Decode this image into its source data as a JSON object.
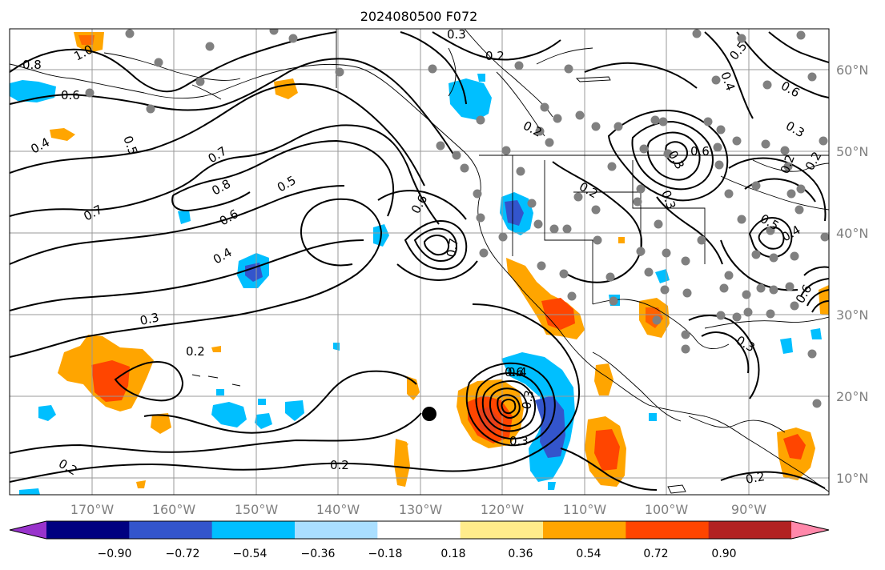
{
  "title": "2024080500 F072",
  "longitude_labels": [
    "170°W",
    "160°W",
    "150°W",
    "140°W",
    "130°W",
    "120°W",
    "110°W",
    "100°W",
    "90°W"
  ],
  "latitude_labels": [
    "60°N",
    "50°N",
    "40°N",
    "30°N",
    "20°N",
    "10°N"
  ],
  "colorbar": {
    "tick_labels": [
      "−0.90",
      "−0.72",
      "−0.54",
      "−0.36",
      "−0.18",
      "0.18",
      "0.36",
      "0.54",
      "0.72",
      "0.90"
    ],
    "colors": [
      "#9933cc",
      "#000080",
      "#3355cc",
      "#00bfff",
      "#aadfff",
      "#ffffff",
      "#ffec8b",
      "#ffa500",
      "#ff4500",
      "#b22222",
      "#ff88aa"
    ]
  },
  "contour_labels": [
    "0.3",
    "0.2",
    "0.8",
    "1.0",
    "0.6",
    "0.5",
    "0.4",
    "0.7",
    "0.8",
    "0.7",
    "0.5",
    "0.6",
    "0.4",
    "0.3",
    "0.2",
    "0.6",
    "0.7",
    "0.2",
    "0.2",
    "0.2",
    "0.2",
    "0.3",
    "0.3",
    "0.6",
    "0.4",
    "0.3",
    "0.2",
    "0.4",
    "0.3",
    "0.2",
    "0.3",
    "0.5",
    "0.6",
    "0.3",
    "0.4",
    "0.2",
    "0.5",
    "0.6",
    "0.6"
  ],
  "colors": {
    "anomaly_orange": "#ffa500",
    "anomaly_red": "#ff4500",
    "anomaly_darkred": "#e8401a",
    "anomaly_blue": "#00bfff",
    "anomaly_midblue": "#3355cc",
    "grid": "#999999",
    "station_dot": "#808080"
  }
}
